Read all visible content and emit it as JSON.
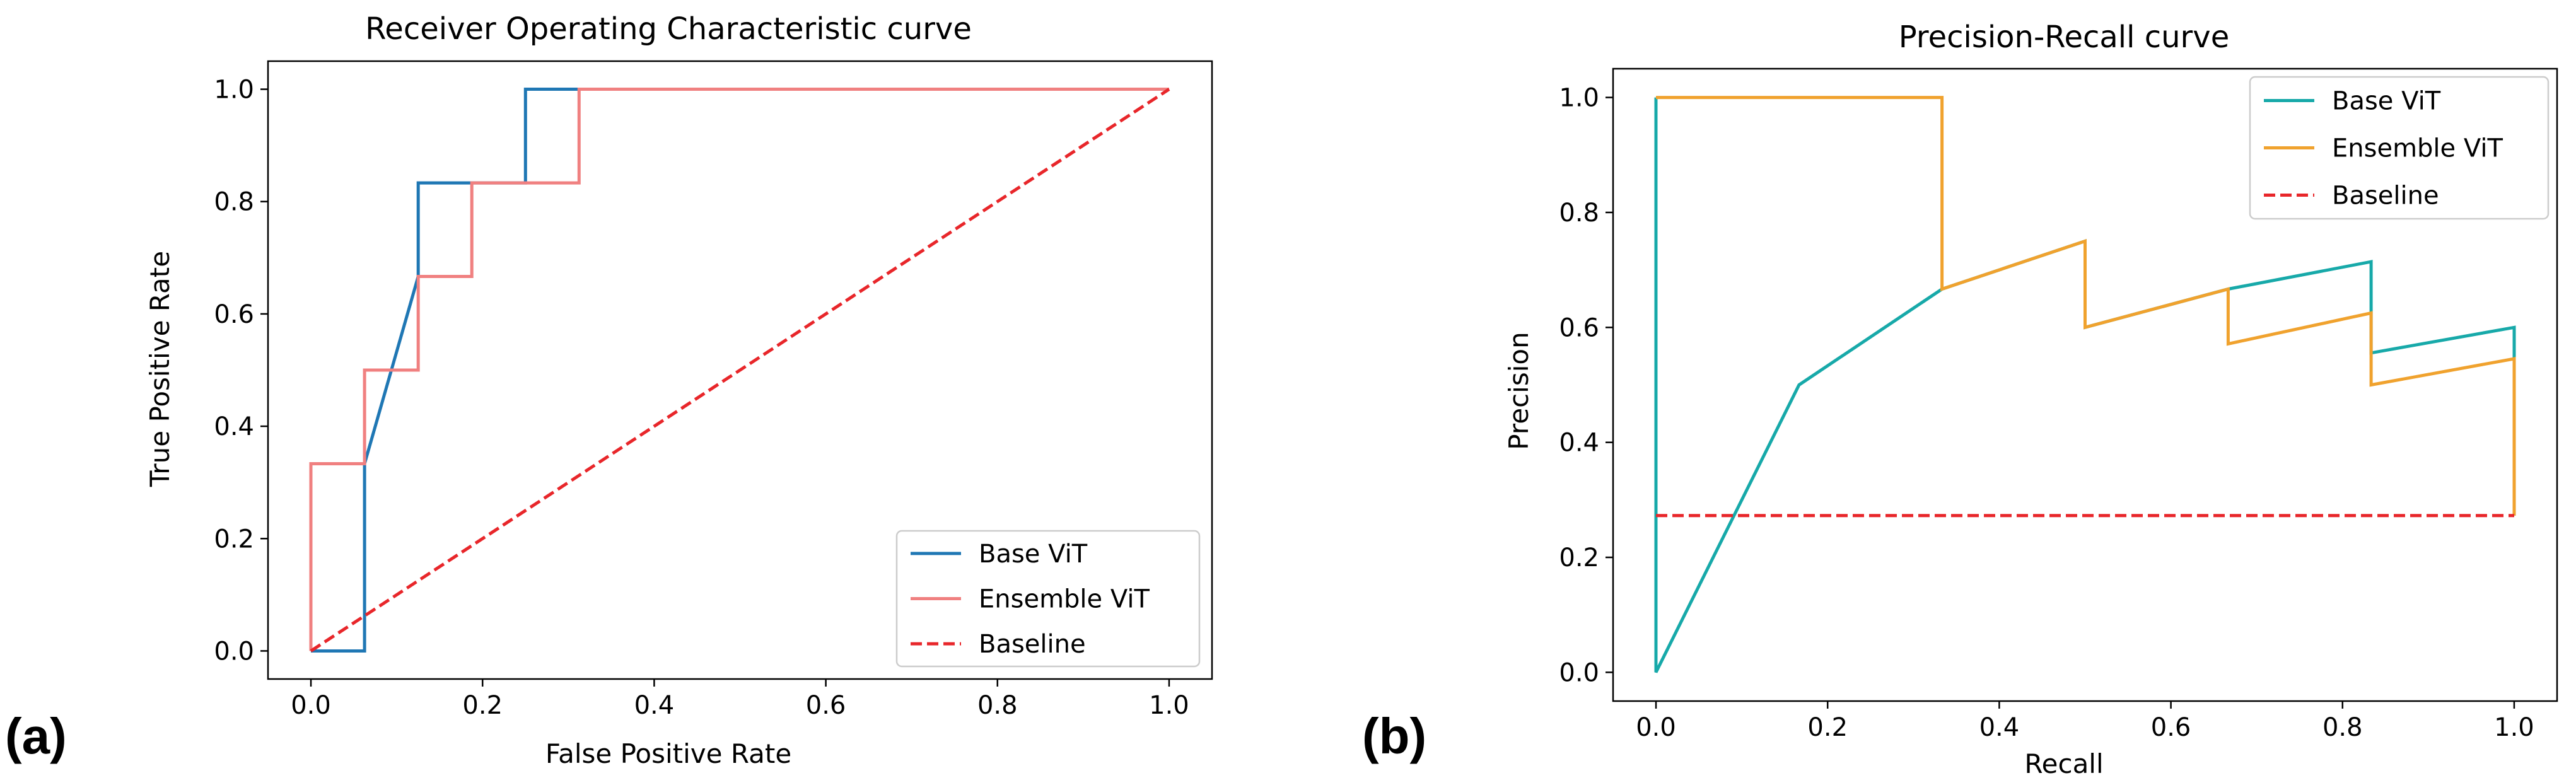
{
  "panel_labels": [
    "(a)",
    "(b)"
  ],
  "chart_data": [
    {
      "type": "line",
      "title": "Receiver Operating Characteristic curve",
      "xlabel": "False Positive Rate",
      "ylabel": "True Positive Rate",
      "xlim": [
        -0.05,
        1.05
      ],
      "ylim": [
        -0.05,
        1.05
      ],
      "xticks": [
        0.0,
        0.2,
        0.4,
        0.6,
        0.8,
        1.0
      ],
      "yticks": [
        0.0,
        0.2,
        0.4,
        0.6,
        0.8,
        1.0
      ],
      "tick_labels_x": [
        "0.0",
        "0.2",
        "0.4",
        "0.6",
        "0.8",
        "1.0"
      ],
      "tick_labels_y": [
        "0.0",
        "0.2",
        "0.4",
        "0.6",
        "0.8",
        "1.0"
      ],
      "grid": false,
      "legend_position": "bottom-right",
      "series": [
        {
          "name": "Base ViT",
          "color": "#1f77b4",
          "dash": "solid",
          "x": [
            0.0,
            0.0625,
            0.0625,
            0.125,
            0.125,
            0.25,
            0.25,
            1.0
          ],
          "y": [
            0.0,
            0.0,
            0.3333,
            0.6667,
            0.8333,
            0.8333,
            1.0,
            1.0
          ]
        },
        {
          "name": "Ensemble ViT",
          "color": "#f08080",
          "dash": "solid",
          "x": [
            0.0,
            0.0,
            0.0625,
            0.0625,
            0.125,
            0.125,
            0.1875,
            0.1875,
            0.3125,
            0.3125,
            1.0
          ],
          "y": [
            0.0,
            0.3333,
            0.3333,
            0.5,
            0.5,
            0.6667,
            0.6667,
            0.8333,
            0.8333,
            1.0,
            1.0
          ]
        },
        {
          "name": "Baseline",
          "color": "#e8262a",
          "dash": "dashed",
          "x": [
            0.0,
            1.0
          ],
          "y": [
            0.0,
            1.0
          ]
        }
      ]
    },
    {
      "type": "line",
      "title": "Precision-Recall curve",
      "xlabel": "Recall",
      "ylabel": "Precision",
      "xlim": [
        -0.05,
        1.05
      ],
      "ylim": [
        -0.05,
        1.05
      ],
      "xticks": [
        0.0,
        0.2,
        0.4,
        0.6,
        0.8,
        1.0
      ],
      "yticks": [
        0.0,
        0.2,
        0.4,
        0.6,
        0.8,
        1.0
      ],
      "tick_labels_x": [
        "0.0",
        "0.2",
        "0.4",
        "0.6",
        "0.8",
        "1.0"
      ],
      "tick_labels_y": [
        "0.0",
        "0.2",
        "0.4",
        "0.6",
        "0.8",
        "1.0"
      ],
      "grid": false,
      "legend_position": "top-right",
      "series": [
        {
          "name": "Base ViT",
          "color": "#17a9a9",
          "dash": "solid",
          "x": [
            0.0,
            0.0,
            0.1667,
            0.3333,
            0.5,
            0.5,
            0.6667,
            0.8333,
            0.8333,
            1.0,
            1.0
          ],
          "y": [
            1.0,
            0.0,
            0.5,
            0.6667,
            0.75,
            0.6,
            0.6667,
            0.7143,
            0.5556,
            0.6,
            0.2727
          ]
        },
        {
          "name": "Ensemble ViT",
          "color": "#f0a22e",
          "dash": "solid",
          "x": [
            0.0,
            0.3333,
            0.3333,
            0.5,
            0.5,
            0.6667,
            0.6667,
            0.8333,
            0.8333,
            1.0,
            1.0
          ],
          "y": [
            1.0,
            1.0,
            0.6667,
            0.75,
            0.6,
            0.6667,
            0.5714,
            0.625,
            0.5,
            0.5455,
            0.2727
          ]
        },
        {
          "name": "Baseline",
          "color": "#e8262a",
          "dash": "dashed",
          "x": [
            0.0,
            1.0
          ],
          "y": [
            0.2727,
            0.2727
          ]
        }
      ]
    }
  ]
}
